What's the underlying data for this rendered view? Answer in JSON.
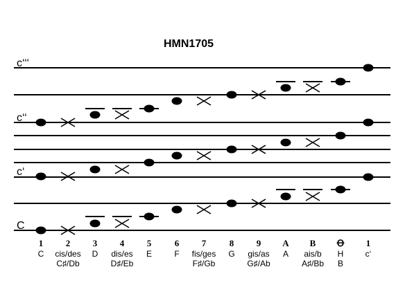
{
  "title": "HMN1705",
  "octave_labels": [
    "c‘‘‘",
    "c‘‘",
    "c‘",
    "C"
  ],
  "columns": [
    {
      "number": "1",
      "name": "C",
      "alt": ""
    },
    {
      "number": "2",
      "name": "cis/des",
      "alt": "C♯/Db"
    },
    {
      "number": "3",
      "name": "D",
      "alt": ""
    },
    {
      "number": "4",
      "name": "dis/es",
      "alt": "D♯/Eb"
    },
    {
      "number": "5",
      "name": "E",
      "alt": ""
    },
    {
      "number": "6",
      "name": "F",
      "alt": ""
    },
    {
      "number": "7",
      "name": "fis/ges",
      "alt": "F♯/Gb"
    },
    {
      "number": "8",
      "name": "G",
      "alt": ""
    },
    {
      "number": "9",
      "name": "gis/as",
      "alt": "G♯/Ab"
    },
    {
      "number": "A",
      "name": "A",
      "alt": ""
    },
    {
      "number": "B",
      "name": "ais/b",
      "alt": "A♯/Bb"
    },
    {
      "number": "Ꝋ",
      "name": "H",
      "alt": "B"
    },
    {
      "number": "1",
      "name": "c‘",
      "alt": ""
    }
  ],
  "note_kinds": [
    "dot",
    "cross",
    "dot",
    "cross",
    "dot",
    "dot",
    "cross",
    "dot",
    "cross",
    "dot",
    "cross",
    "dot",
    "dot"
  ],
  "colors": {
    "ink": "#000000",
    "background": "#ffffff"
  }
}
